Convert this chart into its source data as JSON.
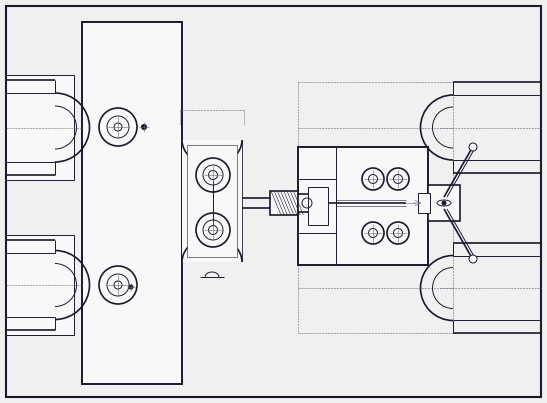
{
  "bg_color": "#f0f0f0",
  "line_color": "#1a1a2e",
  "dash_color": "#666677",
  "fig_bg": "#f0f0f0",
  "border_color": "#1a1a2e",
  "white": "#f8f8f8"
}
